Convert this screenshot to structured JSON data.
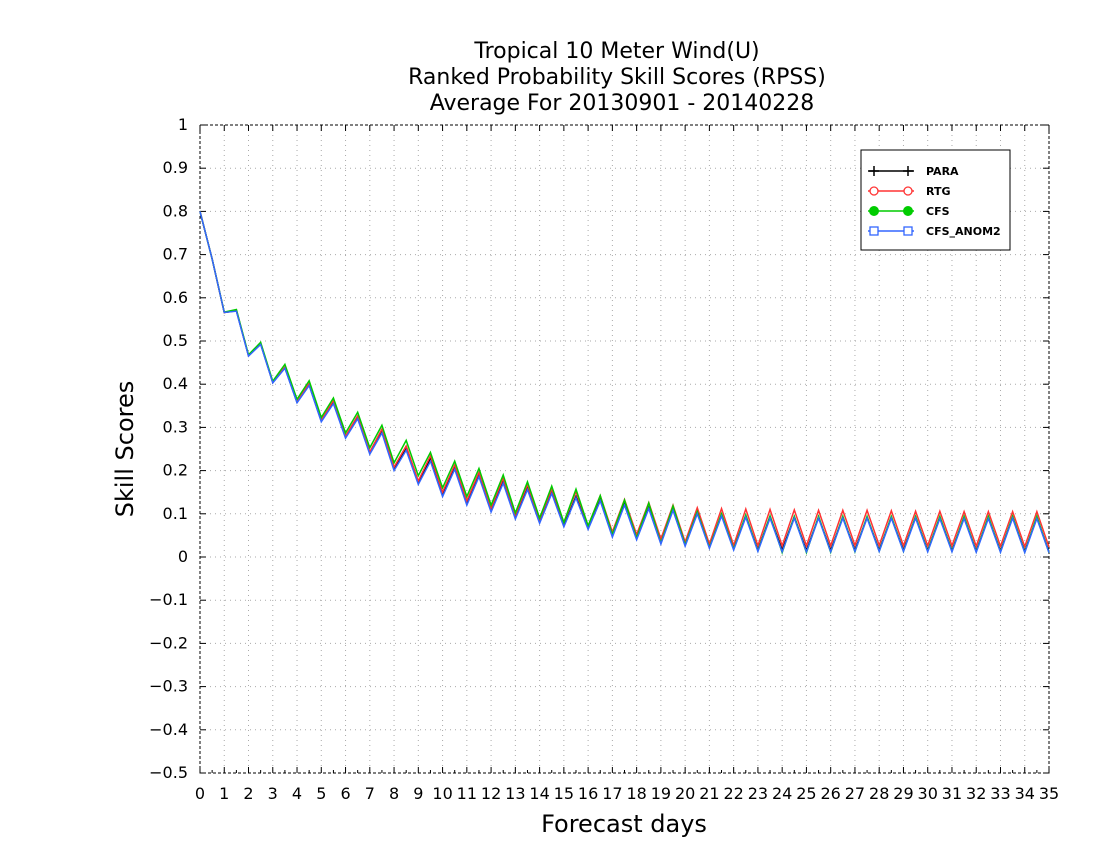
{
  "chart_data": {
    "type": "line",
    "title": [
      "Tropical 10 Meter Wind(U)",
      "Ranked Probability Skill Scores (RPSS)",
      "Average For 20130901 - 20140228"
    ],
    "xlabel": "Forecast days",
    "ylabel": "Skill Scores",
    "xlim": [
      0,
      35
    ],
    "ylim": [
      -0.5,
      1
    ],
    "xticks": [
      "0",
      "1",
      "2",
      "3",
      "4",
      "5",
      "6",
      "7",
      "8",
      "9",
      "10",
      "11",
      "12",
      "13",
      "14",
      "15",
      "16",
      "17",
      "18",
      "19",
      "20",
      "21",
      "22",
      "23",
      "24",
      "25",
      "26",
      "27",
      "28",
      "29",
      "30",
      "31",
      "32",
      "33",
      "34",
      "35"
    ],
    "yticks": [
      "-0.5",
      "-0.4",
      "-0.3",
      "-0.2",
      "-0.1",
      "0",
      "0.1",
      "0.2",
      "0.3",
      "0.4",
      "0.5",
      "0.6",
      "0.7",
      "0.8",
      "0.9",
      "1"
    ],
    "grid": true,
    "legend_position": "top-right",
    "x": [
      0,
      0.5,
      1,
      1.5,
      2,
      2.5,
      3,
      3.5,
      4,
      4.5,
      5,
      5.5,
      6,
      6.5,
      7,
      7.5,
      8,
      8.5,
      9,
      9.5,
      10,
      10.5,
      11,
      11.5,
      12,
      12.5,
      13,
      13.5,
      14,
      14.5,
      15,
      15.5,
      16,
      16.5,
      17,
      17.5,
      18,
      18.5,
      19,
      19.5,
      20,
      20.5,
      21,
      21.5,
      22,
      22.5,
      23,
      23.5,
      24,
      24.5,
      25,
      25.5,
      26,
      26.5,
      27,
      27.5,
      28,
      28.5,
      29,
      29.5,
      30,
      30.5,
      31,
      31.5,
      32,
      32.5,
      33,
      33.5,
      34,
      34.5,
      35
    ],
    "series": [
      {
        "name": "PARA",
        "color": "#000000",
        "marker": "plus",
        "values": [
          0.8,
          0.69,
          0.566,
          0.57,
          0.466,
          0.493,
          0.404,
          0.438,
          0.358,
          0.398,
          0.315,
          0.357,
          0.277,
          0.322,
          0.24,
          0.29,
          0.205,
          0.25,
          0.172,
          0.227,
          0.145,
          0.207,
          0.125,
          0.19,
          0.107,
          0.175,
          0.092,
          0.16,
          0.08,
          0.15,
          0.072,
          0.14,
          0.066,
          0.132,
          0.049,
          0.123,
          0.042,
          0.114,
          0.032,
          0.11,
          0.027,
          0.103,
          0.022,
          0.098,
          0.019,
          0.095,
          0.016,
          0.094,
          0.016,
          0.093,
          0.015,
          0.092,
          0.015,
          0.092,
          0.016,
          0.092,
          0.016,
          0.092,
          0.016,
          0.092,
          0.015,
          0.091,
          0.015,
          0.091,
          0.014,
          0.091,
          0.014,
          0.092,
          0.013,
          0.091,
          0.012
        ]
      },
      {
        "name": "RTG",
        "color": "#ff3333",
        "marker": "open-circle",
        "values": [
          0.8,
          0.69,
          0.566,
          0.572,
          0.466,
          0.495,
          0.404,
          0.44,
          0.36,
          0.402,
          0.317,
          0.362,
          0.28,
          0.327,
          0.243,
          0.296,
          0.208,
          0.257,
          0.176,
          0.234,
          0.15,
          0.213,
          0.13,
          0.196,
          0.113,
          0.182,
          0.097,
          0.167,
          0.087,
          0.157,
          0.08,
          0.151,
          0.072,
          0.142,
          0.058,
          0.133,
          0.052,
          0.126,
          0.042,
          0.12,
          0.035,
          0.114,
          0.03,
          0.112,
          0.027,
          0.111,
          0.026,
          0.11,
          0.026,
          0.109,
          0.026,
          0.108,
          0.026,
          0.108,
          0.027,
          0.108,
          0.027,
          0.107,
          0.026,
          0.106,
          0.026,
          0.106,
          0.026,
          0.105,
          0.025,
          0.105,
          0.025,
          0.105,
          0.024,
          0.105,
          0.023
        ]
      },
      {
        "name": "CFS",
        "color": "#00cc00",
        "marker": "filled-circle",
        "values": [
          0.8,
          0.69,
          0.567,
          0.573,
          0.468,
          0.497,
          0.407,
          0.446,
          0.365,
          0.408,
          0.323,
          0.368,
          0.287,
          0.335,
          0.253,
          0.305,
          0.218,
          0.27,
          0.188,
          0.242,
          0.16,
          0.222,
          0.14,
          0.205,
          0.12,
          0.19,
          0.102,
          0.174,
          0.09,
          0.164,
          0.08,
          0.157,
          0.072,
          0.142,
          0.052,
          0.132,
          0.044,
          0.125,
          0.032,
          0.118,
          0.028,
          0.105,
          0.022,
          0.1,
          0.018,
          0.097,
          0.014,
          0.095,
          0.01,
          0.094,
          0.01,
          0.094,
          0.011,
          0.094,
          0.012,
          0.094,
          0.013,
          0.094,
          0.013,
          0.094,
          0.013,
          0.094,
          0.013,
          0.094,
          0.012,
          0.094,
          0.012,
          0.094,
          0.011,
          0.094,
          0.01
        ]
      },
      {
        "name": "CFS_ANOM2",
        "color": "#3366ff",
        "marker": "open-square",
        "values": [
          0.8,
          0.69,
          0.566,
          0.569,
          0.465,
          0.492,
          0.403,
          0.437,
          0.357,
          0.397,
          0.313,
          0.355,
          0.275,
          0.32,
          0.238,
          0.287,
          0.2,
          0.247,
          0.168,
          0.222,
          0.14,
          0.203,
          0.12,
          0.186,
          0.104,
          0.171,
          0.088,
          0.156,
          0.078,
          0.147,
          0.07,
          0.137,
          0.064,
          0.13,
          0.046,
          0.12,
          0.04,
          0.112,
          0.03,
          0.108,
          0.025,
          0.1,
          0.02,
          0.095,
          0.016,
          0.092,
          0.013,
          0.09,
          0.012,
          0.09,
          0.012,
          0.09,
          0.012,
          0.09,
          0.013,
          0.09,
          0.013,
          0.09,
          0.013,
          0.09,
          0.012,
          0.089,
          0.012,
          0.089,
          0.011,
          0.089,
          0.011,
          0.09,
          0.01,
          0.089,
          0.01
        ]
      }
    ]
  }
}
